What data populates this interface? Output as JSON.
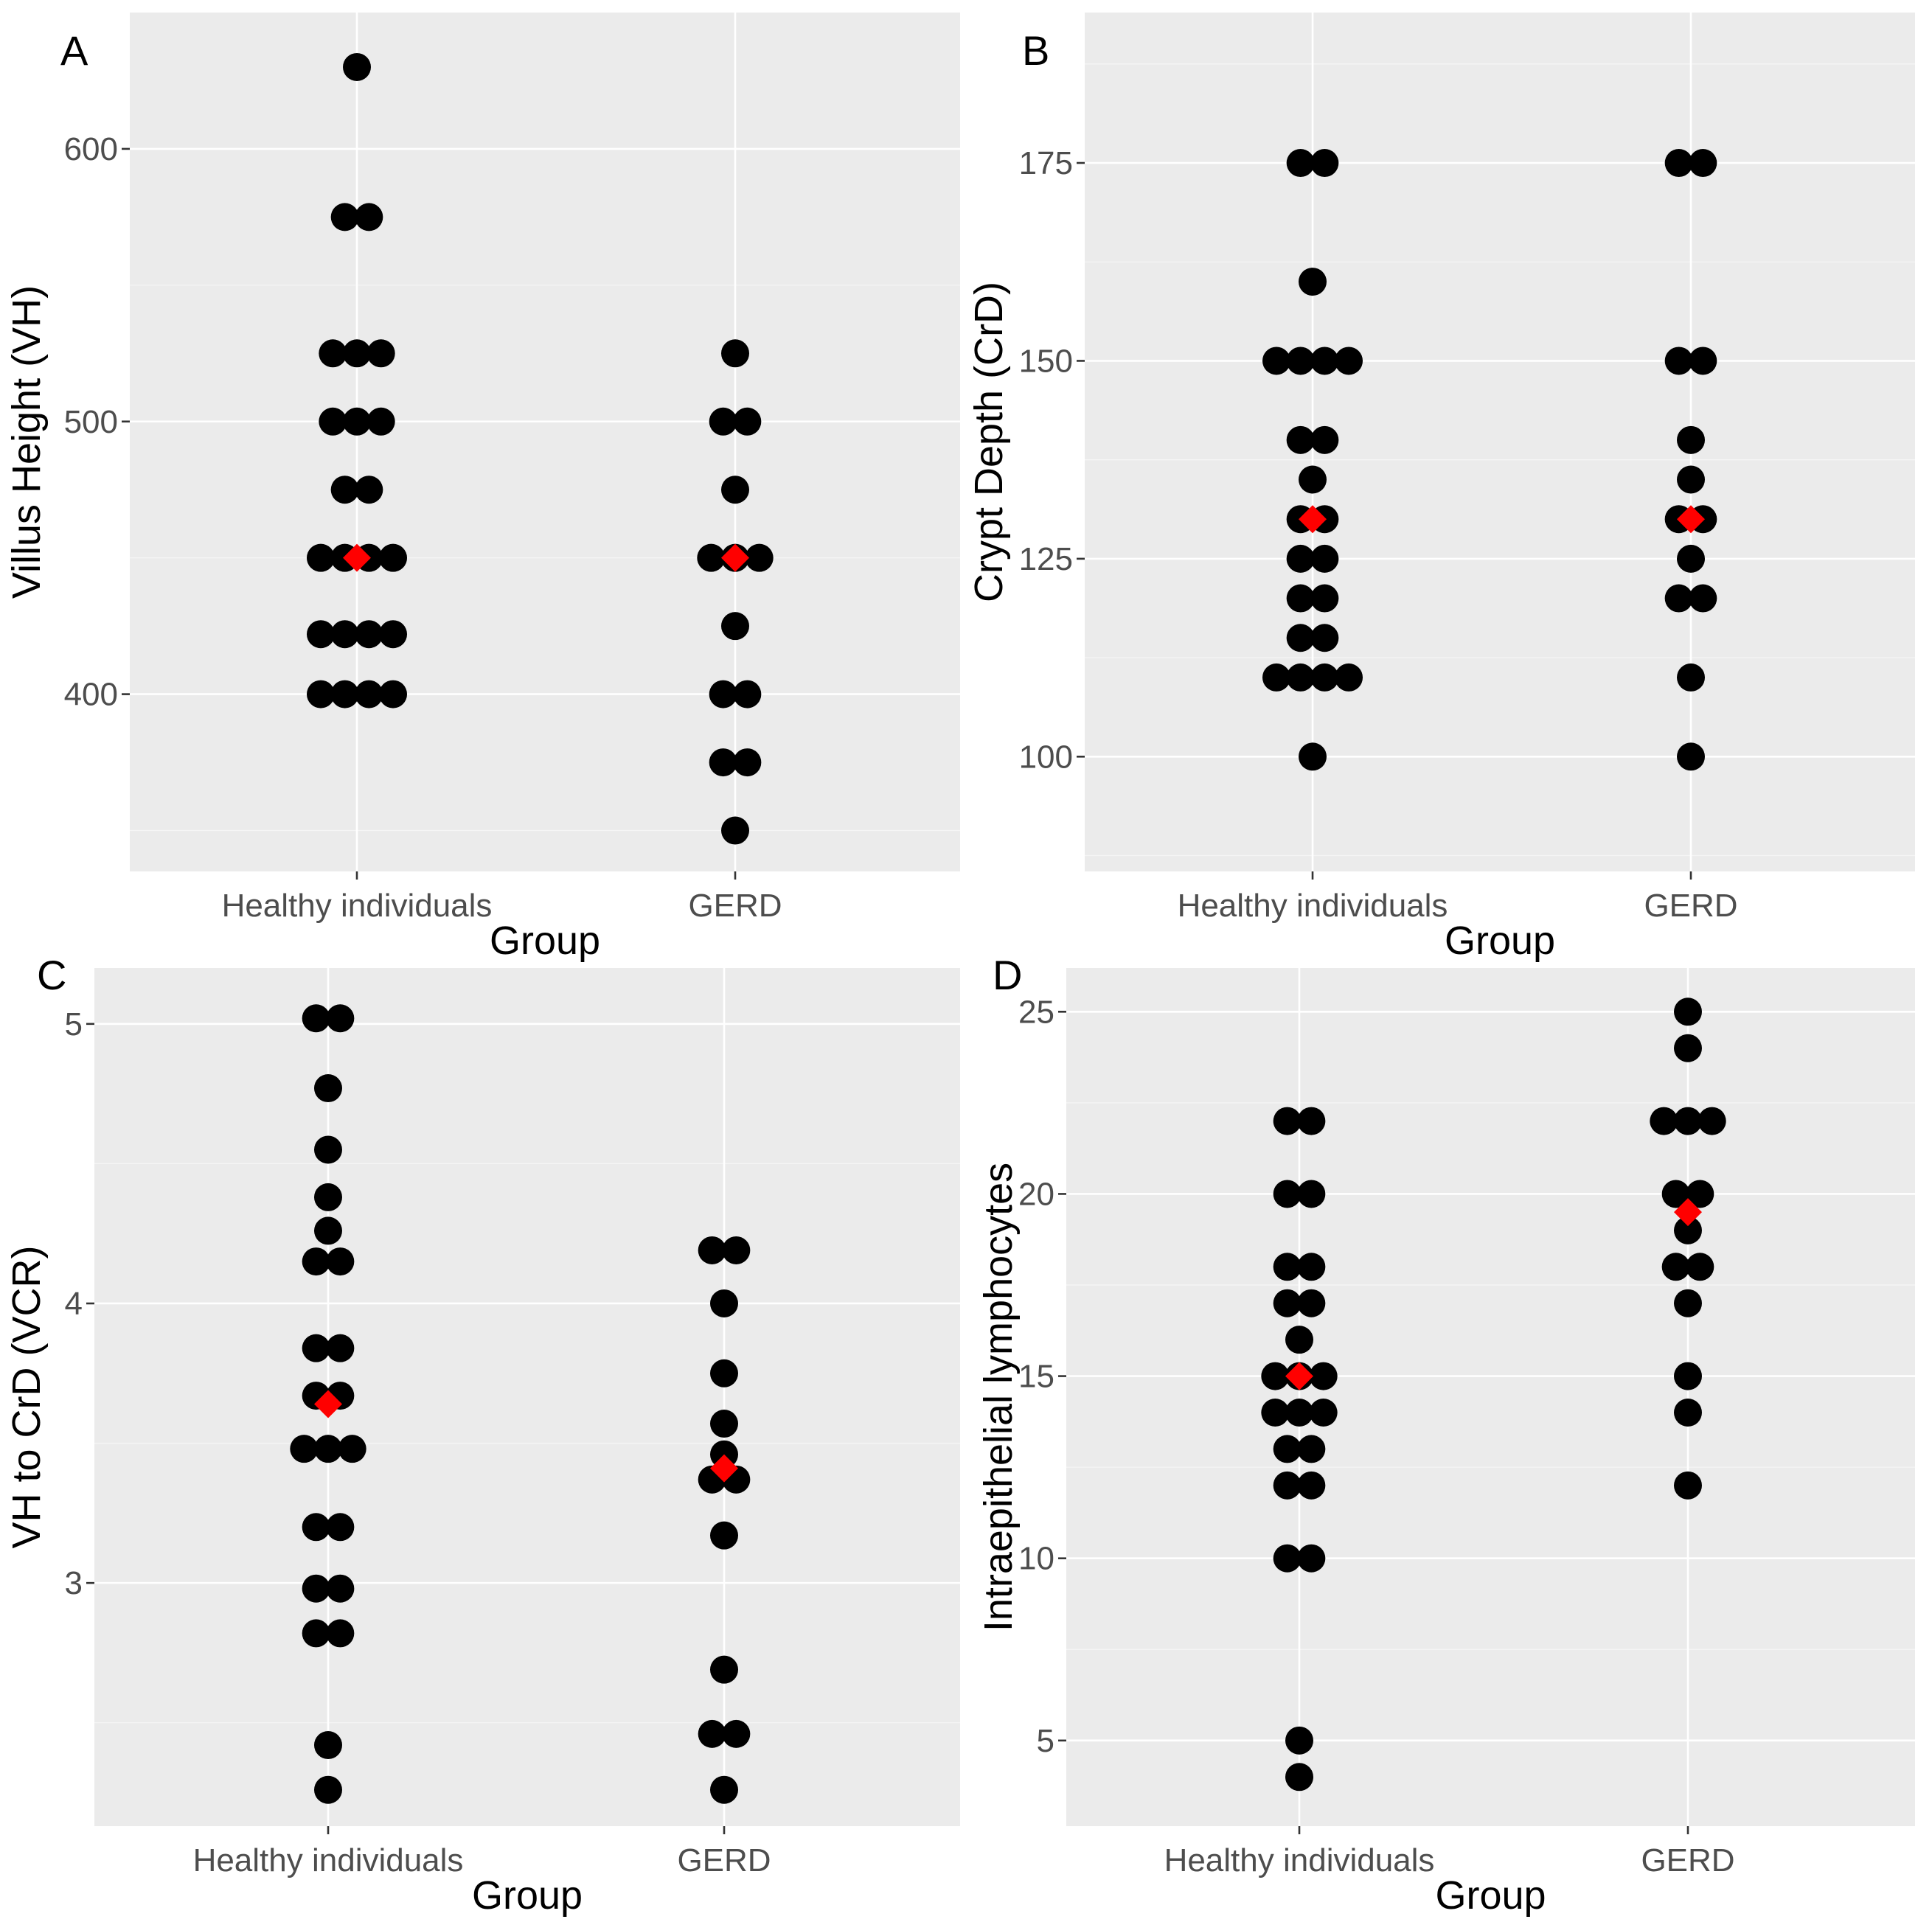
{
  "chart_data": [
    {
      "panel": "A",
      "type": "scatter",
      "subtype": "dotplot",
      "xlabel": "Group",
      "ylabel": "Villus Height (VH)",
      "categories": [
        "Healthy individuals",
        "GERD"
      ],
      "ylim": [
        335,
        650
      ],
      "yticks": [
        400,
        500,
        600
      ],
      "yminor": [
        350,
        450,
        550
      ],
      "binwidth": 25,
      "series": [
        {
          "name": "Healthy individuals",
          "values": [
            630,
            575,
            575,
            525,
            525,
            525,
            500,
            500,
            500,
            475,
            475,
            450,
            450,
            450,
            450,
            422,
            422,
            422,
            422,
            400,
            400,
            400,
            400
          ]
        },
        {
          "name": "GERD",
          "values": [
            525,
            500,
            500,
            475,
            450,
            450,
            450,
            425,
            400,
            400,
            375,
            375,
            350
          ]
        }
      ],
      "means": [
        450,
        450
      ],
      "grid": true
    },
    {
      "panel": "B",
      "type": "scatter",
      "subtype": "dotplot",
      "xlabel": "Group",
      "ylabel": "Crypt Depth (CrD)",
      "categories": [
        "Healthy individuals",
        "GERD"
      ],
      "ylim": [
        85.5,
        194
      ],
      "yticks": [
        100,
        125,
        150,
        175
      ],
      "yminor": [
        87.5,
        112.5,
        137.5,
        162.5,
        187.5
      ],
      "binwidth": 5.3,
      "series": [
        {
          "name": "Healthy individuals",
          "values": [
            175,
            175,
            160,
            150,
            150,
            150,
            150,
            140,
            140,
            135,
            130,
            130,
            125,
            125,
            120,
            120,
            115,
            115,
            110,
            110,
            110,
            110,
            100
          ]
        },
        {
          "name": "GERD",
          "values": [
            175,
            175,
            150,
            150,
            140,
            135,
            130,
            130,
            125,
            120,
            120,
            110,
            100
          ]
        }
      ],
      "means": [
        130,
        130
      ],
      "grid": true
    },
    {
      "panel": "C",
      "type": "scatter",
      "subtype": "dotplot",
      "xlabel": "Group",
      "ylabel": "VH to CrD (VCR)",
      "categories": [
        "Healthy individuals",
        "GERD"
      ],
      "ylim": [
        2.13,
        5.2
      ],
      "yticks": [
        3,
        4,
        5
      ],
      "yminor": [
        2.5,
        3.5,
        4.5
      ],
      "binwidth": 0.11,
      "series": [
        {
          "name": "Healthy individuals",
          "values": [
            5.02,
            5.02,
            4.77,
            4.55,
            4.38,
            4.26,
            4.15,
            4.15,
            3.84,
            3.84,
            3.67,
            3.67,
            3.48,
            3.48,
            3.48,
            3.2,
            3.2,
            2.98,
            2.98,
            2.82,
            2.82,
            2.42,
            2.26
          ]
        },
        {
          "name": "GERD",
          "values": [
            4.19,
            4.19,
            4.0,
            3.75,
            3.57,
            3.46,
            3.37,
            3.37,
            3.17,
            2.69,
            2.46,
            2.46,
            2.26
          ]
        }
      ],
      "means": [
        3.64,
        3.41
      ],
      "grid": true
    },
    {
      "panel": "D",
      "type": "scatter",
      "subtype": "dotplot",
      "xlabel": "Group",
      "ylabel": "Intraepithelial lymphocytes",
      "categories": [
        "Healthy individuals",
        "GERD"
      ],
      "ylim": [
        2.65,
        26.2
      ],
      "yticks": [
        5,
        10,
        15,
        20,
        25
      ],
      "yminor": [
        7.5,
        12.5,
        17.5,
        22.5
      ],
      "binwidth": 1.0,
      "series": [
        {
          "name": "Healthy individuals",
          "values": [
            22,
            22,
            20,
            20,
            18,
            18,
            17,
            17,
            16,
            15,
            15,
            15,
            14,
            14,
            14,
            13,
            13,
            12,
            12,
            10,
            10,
            5,
            4
          ]
        },
        {
          "name": "GERD",
          "values": [
            25,
            24,
            22,
            22,
            22,
            20,
            20,
            19,
            18,
            18,
            17,
            15,
            14,
            12
          ]
        }
      ],
      "means": [
        15,
        19.5
      ],
      "grid": true
    }
  ]
}
